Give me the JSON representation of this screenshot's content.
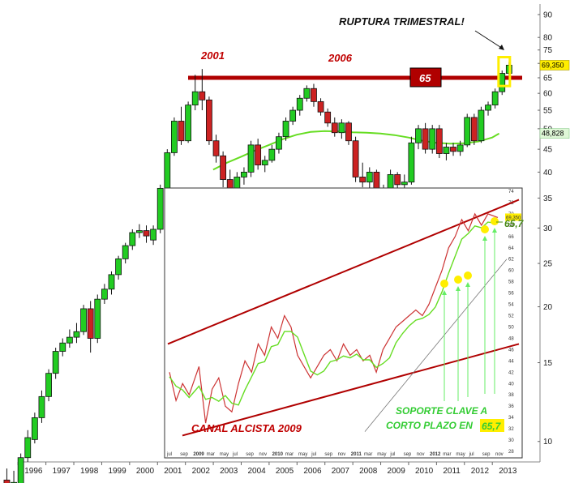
{
  "chart_data": [
    {
      "type": "candlestick",
      "title": "",
      "ylim": [
        9,
        95
      ],
      "y_scale": "log",
      "y_ticks": [
        10,
        15,
        20,
        25,
        30,
        35,
        40,
        45,
        50,
        55,
        60,
        65,
        70,
        75,
        80,
        90
      ],
      "x_ticks": [
        "1996",
        "1997",
        "1998",
        "1999",
        "2000",
        "2001",
        "2002",
        "2003",
        "2004",
        "2005",
        "2006",
        "2007",
        "2008",
        "2009",
        "2010",
        "2011",
        "2012",
        "2013"
      ],
      "last_price_label": "69,350",
      "ma_label": "48,828",
      "moving_average": [
        {
          "x": 2002.5,
          "y": 40.5
        },
        {
          "x": 2003.0,
          "y": 42.0
        },
        {
          "x": 2003.5,
          "y": 43.3
        },
        {
          "x": 2004.0,
          "y": 44.7
        },
        {
          "x": 2004.5,
          "y": 46.0
        },
        {
          "x": 2005.0,
          "y": 47.4
        },
        {
          "x": 2005.5,
          "y": 48.5
        },
        {
          "x": 2006.0,
          "y": 49.2
        },
        {
          "x": 2006.5,
          "y": 49.4
        },
        {
          "x": 2007.0,
          "y": 49.3
        },
        {
          "x": 2007.5,
          "y": 49.1
        },
        {
          "x": 2008.0,
          "y": 49.0
        },
        {
          "x": 2008.5,
          "y": 48.8
        },
        {
          "x": 2009.0,
          "y": 48.4
        },
        {
          "x": 2009.5,
          "y": 47.8
        },
        {
          "x": 2010.0,
          "y": 47.0
        },
        {
          "x": 2010.5,
          "y": 46.5
        },
        {
          "x": 2011.0,
          "y": 46.3
        },
        {
          "x": 2011.5,
          "y": 46.4
        },
        {
          "x": 2012.0,
          "y": 46.8
        },
        {
          "x": 2012.5,
          "y": 47.8
        },
        {
          "x": 2012.75,
          "y": 48.8
        }
      ],
      "candles": [
        {
          "t": 1995.6,
          "o": 8.2,
          "h": 8.7,
          "l": 7.3,
          "c": 8.0
        },
        {
          "t": 1995.85,
          "o": 8.0,
          "h": 8.6,
          "l": 7.6,
          "c": 8.1
        },
        {
          "t": 1996.1,
          "o": 7.8,
          "h": 9.4,
          "l": 7.5,
          "c": 9.2
        },
        {
          "t": 1996.35,
          "o": 9.2,
          "h": 10.6,
          "l": 9.0,
          "c": 10.2
        },
        {
          "t": 1996.6,
          "o": 10.1,
          "h": 11.6,
          "l": 9.9,
          "c": 11.3
        },
        {
          "t": 1996.85,
          "o": 11.3,
          "h": 13.0,
          "l": 11.0,
          "c": 12.6
        },
        {
          "t": 1997.1,
          "o": 12.6,
          "h": 14.5,
          "l": 12.3,
          "c": 14.2
        },
        {
          "t": 1997.35,
          "o": 14.2,
          "h": 16.2,
          "l": 13.8,
          "c": 15.9
        },
        {
          "t": 1997.6,
          "o": 15.9,
          "h": 17.0,
          "l": 15.5,
          "c": 16.6
        },
        {
          "t": 1997.85,
          "o": 16.6,
          "h": 17.8,
          "l": 16.2,
          "c": 17.1
        },
        {
          "t": 1998.1,
          "o": 17.1,
          "h": 18.4,
          "l": 16.6,
          "c": 17.6
        },
        {
          "t": 1998.35,
          "o": 17.6,
          "h": 20.2,
          "l": 17.3,
          "c": 19.8
        },
        {
          "t": 1998.6,
          "o": 19.8,
          "h": 20.6,
          "l": 15.8,
          "c": 17.0
        },
        {
          "t": 1998.85,
          "o": 17.0,
          "h": 21.3,
          "l": 16.6,
          "c": 20.8
        },
        {
          "t": 1999.1,
          "o": 20.8,
          "h": 22.5,
          "l": 20.3,
          "c": 21.9
        },
        {
          "t": 1999.35,
          "o": 21.9,
          "h": 24.0,
          "l": 21.3,
          "c": 23.6
        },
        {
          "t": 1999.6,
          "o": 23.6,
          "h": 26.0,
          "l": 23.0,
          "c": 25.6
        },
        {
          "t": 1999.85,
          "o": 25.6,
          "h": 27.8,
          "l": 25.0,
          "c": 27.4
        },
        {
          "t": 2000.1,
          "o": 27.4,
          "h": 29.8,
          "l": 26.8,
          "c": 29.3
        },
        {
          "t": 2000.35,
          "o": 29.3,
          "h": 30.6,
          "l": 28.5,
          "c": 29.6
        },
        {
          "t": 2000.6,
          "o": 29.6,
          "h": 30.4,
          "l": 27.8,
          "c": 28.8
        },
        {
          "t": 2000.85,
          "o": 28.2,
          "h": 30.4,
          "l": 27.5,
          "c": 29.8
        },
        {
          "t": 2001.1,
          "o": 29.8,
          "h": 37.5,
          "l": 29.2,
          "c": 36.8
        },
        {
          "t": 2001.35,
          "o": 36.8,
          "h": 45.0,
          "l": 36.0,
          "c": 44.2
        },
        {
          "t": 2001.6,
          "o": 44.2,
          "h": 53.0,
          "l": 43.5,
          "c": 52.0
        },
        {
          "t": 2001.85,
          "o": 52.0,
          "h": 56.0,
          "l": 46.0,
          "c": 47.0
        },
        {
          "t": 2002.1,
          "o": 47.0,
          "h": 57.5,
          "l": 46.5,
          "c": 56.5
        },
        {
          "t": 2002.35,
          "o": 56.5,
          "h": 66.0,
          "l": 55.0,
          "c": 60.5
        },
        {
          "t": 2002.6,
          "o": 60.5,
          "h": 68.0,
          "l": 55.0,
          "c": 58.0
        },
        {
          "t": 2002.85,
          "o": 58.0,
          "h": 59.0,
          "l": 46.0,
          "c": 47.0
        },
        {
          "t": 2003.1,
          "o": 47.0,
          "h": 48.5,
          "l": 42.0,
          "c": 43.5
        },
        {
          "t": 2003.35,
          "o": 43.5,
          "h": 44.5,
          "l": 37.0,
          "c": 38.5
        },
        {
          "t": 2003.6,
          "o": 38.5,
          "h": 40.5,
          "l": 33.5,
          "c": 35.5
        },
        {
          "t": 2003.85,
          "o": 35.5,
          "h": 40.0,
          "l": 34.5,
          "c": 39.0
        },
        {
          "t": 2004.1,
          "o": 39.0,
          "h": 41.0,
          "l": 37.5,
          "c": 40.0
        },
        {
          "t": 2004.35,
          "o": 40.0,
          "h": 47.0,
          "l": 39.0,
          "c": 46.0
        },
        {
          "t": 2004.6,
          "o": 46.0,
          "h": 47.5,
          "l": 40.5,
          "c": 41.5
        },
        {
          "t": 2004.85,
          "o": 41.5,
          "h": 43.5,
          "l": 40.0,
          "c": 42.5
        },
        {
          "t": 2005.1,
          "o": 42.5,
          "h": 46.0,
          "l": 42.0,
          "c": 45.0
        },
        {
          "t": 2005.35,
          "o": 45.0,
          "h": 49.0,
          "l": 44.0,
          "c": 48.0
        },
        {
          "t": 2005.6,
          "o": 48.0,
          "h": 53.0,
          "l": 47.0,
          "c": 52.0
        },
        {
          "t": 2005.85,
          "o": 52.0,
          "h": 56.0,
          "l": 51.0,
          "c": 55.0
        },
        {
          "t": 2006.1,
          "o": 55.0,
          "h": 59.5,
          "l": 53.5,
          "c": 58.5
        },
        {
          "t": 2006.35,
          "o": 58.5,
          "h": 62.5,
          "l": 57.5,
          "c": 61.5
        },
        {
          "t": 2006.6,
          "o": 61.5,
          "h": 63.0,
          "l": 56.0,
          "c": 57.5
        },
        {
          "t": 2006.85,
          "o": 57.5,
          "h": 58.5,
          "l": 53.5,
          "c": 54.5
        },
        {
          "t": 2007.1,
          "o": 54.5,
          "h": 55.5,
          "l": 50.5,
          "c": 51.5
        },
        {
          "t": 2007.35,
          "o": 51.5,
          "h": 53.0,
          "l": 48.0,
          "c": 49.0
        },
        {
          "t": 2007.6,
          "o": 49.0,
          "h": 52.5,
          "l": 47.5,
          "c": 51.5
        },
        {
          "t": 2007.85,
          "o": 51.5,
          "h": 52.0,
          "l": 46.0,
          "c": 47.0
        },
        {
          "t": 2008.1,
          "o": 47.0,
          "h": 48.0,
          "l": 38.0,
          "c": 39.0
        },
        {
          "t": 2008.35,
          "o": 39.0,
          "h": 42.0,
          "l": 37.0,
          "c": 38.0
        },
        {
          "t": 2008.6,
          "o": 38.0,
          "h": 41.0,
          "l": 36.0,
          "c": 40.0
        },
        {
          "t": 2008.85,
          "o": 40.0,
          "h": 40.5,
          "l": 33.0,
          "c": 35.5
        },
        {
          "t": 2009.1,
          "o": 35.5,
          "h": 37.5,
          "l": 30.5,
          "c": 36.5
        },
        {
          "t": 2009.35,
          "o": 36.5,
          "h": 40.5,
          "l": 35.5,
          "c": 39.5
        },
        {
          "t": 2009.6,
          "o": 39.5,
          "h": 40.0,
          "l": 36.5,
          "c": 37.5
        },
        {
          "t": 2009.85,
          "o": 37.5,
          "h": 39.5,
          "l": 35.0,
          "c": 38.0
        },
        {
          "t": 2010.1,
          "o": 38.0,
          "h": 48.0,
          "l": 37.5,
          "c": 46.5
        },
        {
          "t": 2010.35,
          "o": 46.5,
          "h": 51.0,
          "l": 45.0,
          "c": 50.0
        },
        {
          "t": 2010.6,
          "o": 50.0,
          "h": 51.5,
          "l": 44.0,
          "c": 45.0
        },
        {
          "t": 2010.85,
          "o": 45.0,
          "h": 51.0,
          "l": 44.0,
          "c": 50.0
        },
        {
          "t": 2011.1,
          "o": 50.0,
          "h": 51.0,
          "l": 43.0,
          "c": 44.0
        },
        {
          "t": 2011.35,
          "o": 44.0,
          "h": 46.5,
          "l": 42.5,
          "c": 45.5
        },
        {
          "t": 2011.6,
          "o": 45.5,
          "h": 46.5,
          "l": 43.5,
          "c": 44.5
        },
        {
          "t": 2011.85,
          "o": 44.5,
          "h": 47.0,
          "l": 43.5,
          "c": 46.0
        },
        {
          "t": 2012.1,
          "o": 46.0,
          "h": 54.0,
          "l": 45.5,
          "c": 53.0
        },
        {
          "t": 2012.35,
          "o": 53.0,
          "h": 54.0,
          "l": 46.0,
          "c": 47.0
        },
        {
          "t": 2012.6,
          "o": 47.0,
          "h": 56.0,
          "l": 46.5,
          "c": 55.0
        },
        {
          "t": 2012.85,
          "o": 55.0,
          "h": 57.5,
          "l": 53.5,
          "c": 56.5
        },
        {
          "t": 2013.1,
          "o": 56.5,
          "h": 61.5,
          "l": 55.5,
          "c": 60.5
        },
        {
          "t": 2013.35,
          "o": 60.5,
          "h": 67.5,
          "l": 59.5,
          "c": 66.5
        },
        {
          "t": 2013.6,
          "o": 66.5,
          "h": 70.5,
          "l": 65.5,
          "c": 69.35
        }
      ]
    },
    {
      "type": "line",
      "title": "",
      "ylim": [
        28,
        74
      ],
      "y_ticks": [
        28,
        30,
        32,
        34,
        36,
        38,
        40,
        42,
        44,
        46,
        48,
        50,
        52,
        54,
        56,
        58,
        60,
        62,
        64,
        66,
        68,
        70,
        72,
        74
      ],
      "x_ticks": [
        "jul",
        "sep",
        "2009",
        "mar",
        "may",
        "jul",
        "sep",
        "nov",
        "2010",
        "mar",
        "may",
        "jul",
        "sep",
        "nov",
        "2011",
        "mar",
        "may",
        "jul",
        "sep",
        "nov",
        "2012",
        "mar",
        "may",
        "jul",
        "sep",
        "nov"
      ],
      "last_price_label": "69,350",
      "series": [
        {
          "points": [
            {
              "x": 0,
              "y": 42
            },
            {
              "x": 0.02,
              "y": 37
            },
            {
              "x": 0.04,
              "y": 40
            },
            {
              "x": 0.06,
              "y": 38
            },
            {
              "x": 0.09,
              "y": 43
            },
            {
              "x": 0.11,
              "y": 33
            },
            {
              "x": 0.13,
              "y": 39
            },
            {
              "x": 0.15,
              "y": 41
            },
            {
              "x": 0.17,
              "y": 36
            },
            {
              "x": 0.19,
              "y": 35
            },
            {
              "x": 0.21,
              "y": 40
            },
            {
              "x": 0.23,
              "y": 44
            },
            {
              "x": 0.25,
              "y": 42
            },
            {
              "x": 0.27,
              "y": 47
            },
            {
              "x": 0.29,
              "y": 45
            },
            {
              "x": 0.31,
              "y": 50
            },
            {
              "x": 0.33,
              "y": 48
            },
            {
              "x": 0.35,
              "y": 52
            },
            {
              "x": 0.37,
              "y": 50
            },
            {
              "x": 0.39,
              "y": 45
            },
            {
              "x": 0.41,
              "y": 43
            },
            {
              "x": 0.43,
              "y": 41
            },
            {
              "x": 0.45,
              "y": 43
            },
            {
              "x": 0.47,
              "y": 45
            },
            {
              "x": 0.49,
              "y": 46
            },
            {
              "x": 0.51,
              "y": 44
            },
            {
              "x": 0.53,
              "y": 47
            },
            {
              "x": 0.55,
              "y": 45
            },
            {
              "x": 0.57,
              "y": 46
            },
            {
              "x": 0.59,
              "y": 44
            },
            {
              "x": 0.61,
              "y": 45
            },
            {
              "x": 0.63,
              "y": 42
            },
            {
              "x": 0.65,
              "y": 46
            },
            {
              "x": 0.67,
              "y": 48
            },
            {
              "x": 0.69,
              "y": 50
            },
            {
              "x": 0.71,
              "y": 51
            },
            {
              "x": 0.73,
              "y": 52
            },
            {
              "x": 0.75,
              "y": 53
            },
            {
              "x": 0.77,
              "y": 52
            },
            {
              "x": 0.79,
              "y": 54
            },
            {
              "x": 0.81,
              "y": 57
            },
            {
              "x": 0.83,
              "y": 60
            },
            {
              "x": 0.85,
              "y": 64
            },
            {
              "x": 0.87,
              "y": 66
            },
            {
              "x": 0.89,
              "y": 69
            },
            {
              "x": 0.91,
              "y": 67
            },
            {
              "x": 0.93,
              "y": 70
            },
            {
              "x": 0.95,
              "y": 68
            },
            {
              "x": 0.97,
              "y": 70
            },
            {
              "x": 1.0,
              "y": 69.35
            }
          ]
        }
      ]
    }
  ],
  "annotations": {
    "breakout": "RUPTURA TRIMESTRAL!",
    "year_2001": "2001",
    "year_2006": "2006",
    "level_65": "65",
    "channel": "CANAL ALCISTA 2009",
    "support_line1": "SOPORTE CLAVE A",
    "support_line2": "CORTO PLAZO EN",
    "support_value": "65,7",
    "support_marker": "65,7"
  },
  "colors": {
    "bull": "#22cc22",
    "bear": "#cc2222",
    "resistance": "#b00000",
    "ma": "#66dd22",
    "highlight": "#ffee00"
  }
}
